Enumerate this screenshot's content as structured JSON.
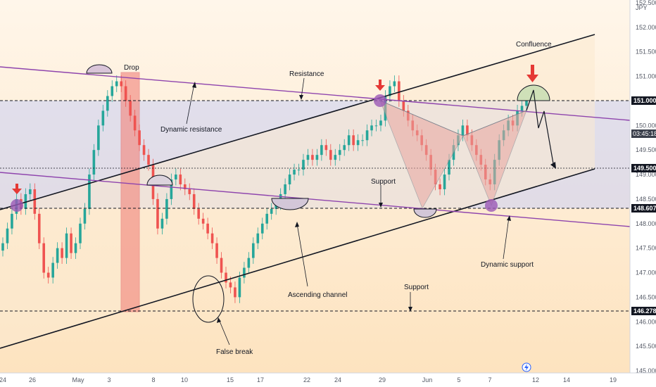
{
  "currency": "JPY",
  "annotations": {
    "drop": "Drop",
    "confluence": "Confluence",
    "resistance": "Resistance",
    "dynamic_resistance": "Dynamic resistance",
    "support_mid": "Support",
    "support_low": "Support",
    "ascending_channel": "Ascending channel",
    "false_break": "False break",
    "dynamic_support": "Dynamic support"
  },
  "price_badges": {
    "level_151": "151.000",
    "countdown": "03:45:18",
    "level_1495": "149.500",
    "level_148607": "148.607",
    "level_146278": "146.278"
  },
  "colors": {
    "bull": "#26a69a",
    "bear": "#ef5350",
    "purple": "#8e44ad",
    "arrow_red": "#e53935"
  },
  "chart_data": {
    "type": "candlestick",
    "ylim": [
      145.0,
      152.6
    ],
    "y_ticks": [
      "152.500",
      "152.000",
      "151.500",
      "151.000",
      "150.500",
      "150.000",
      "149.500",
      "149.000",
      "148.500",
      "148.000",
      "147.500",
      "147.000",
      "146.500",
      "146.000",
      "145.500",
      "145.000"
    ],
    "x_ticks": [
      "24",
      "26",
      "May",
      "3",
      "8",
      "10",
      "15",
      "17",
      "22",
      "24",
      "29",
      "Jun",
      "5",
      "7",
      "12",
      "14",
      "19"
    ],
    "levels": [
      151.0,
      149.5,
      148.607,
      146.278
    ],
    "closes": [
      147.6,
      147.9,
      148.2,
      148.5,
      148.3,
      148.6,
      148.7,
      148.2,
      147.6,
      147.0,
      146.9,
      147.2,
      147.5,
      147.3,
      147.8,
      147.4,
      147.6,
      148.0,
      148.3,
      149.0,
      149.5,
      150.0,
      150.3,
      150.6,
      150.8,
      150.9,
      150.8,
      150.5,
      150.2,
      149.9,
      149.6,
      149.4,
      149.2,
      148.5,
      147.9,
      148.1,
      148.5,
      148.9,
      149.0,
      148.8,
      148.7,
      148.6,
      148.3,
      148.1,
      148.0,
      147.8,
      147.6,
      147.3,
      147.0,
      146.8,
      146.7,
      146.5,
      146.9,
      147.1,
      147.3,
      147.6,
      147.8,
      148.0,
      148.2,
      148.3,
      148.4,
      148.6,
      148.8,
      149.0,
      149.1,
      149.1,
      149.3,
      149.4,
      149.3,
      149.4,
      149.6,
      149.5,
      149.3,
      149.4,
      149.5,
      149.6,
      149.8,
      149.6,
      149.7,
      149.7,
      149.9,
      150.0,
      150.0,
      150.1,
      150.6,
      150.8,
      150.9,
      150.5,
      150.3,
      150.1,
      149.9,
      149.8,
      149.6,
      149.4,
      149.1,
      148.8,
      148.7,
      149.0,
      149.3,
      149.6,
      149.8,
      150.0,
      149.8,
      149.6,
      149.4,
      149.2,
      148.9,
      148.8,
      149.3,
      149.7,
      149.9,
      150.1,
      150.0,
      150.3,
      150.4,
      150.6
    ],
    "x_start_label": "24",
    "x_end_label": "19"
  }
}
